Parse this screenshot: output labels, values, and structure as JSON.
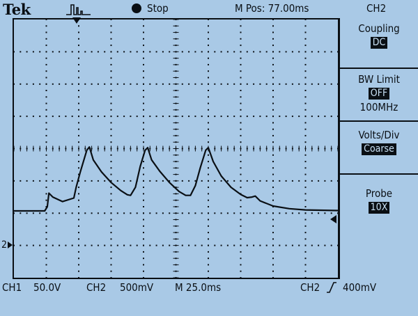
{
  "brand": "Tek",
  "icons": {
    "trigger": "trigger-pulse-icon",
    "run_state": "stop-dot-icon",
    "trigger_position": "trigger-position-marker-icon",
    "trigger_level": "trigger-level-marker-icon",
    "channel_ground": "channel-ground-marker-icon",
    "slope": "rising-slope-icon"
  },
  "status": {
    "run_state": "Stop",
    "m_pos": "M Pos: 77.00ms",
    "active_channel": "CH2"
  },
  "menu": [
    {
      "title": "Coupling",
      "value": "DC",
      "extra": ""
    },
    {
      "title": "BW Limit",
      "value": "OFF",
      "extra": "100MHz"
    },
    {
      "title": "Volts/Div",
      "value": "Coarse",
      "extra": ""
    },
    {
      "title": "Probe",
      "value": "10X",
      "extra": ""
    }
  ],
  "bottom": {
    "ch1": "CH1",
    "ch1_scale": "50.0V",
    "ch2": "CH2",
    "ch2_scale": "500mV",
    "timebase": "M 25.0ms",
    "trig_source": "CH2",
    "trig_level": "400mV"
  },
  "ground_marker_label": "2",
  "colors": {
    "background": "#a9c9e6",
    "foreground": "#0a0f14",
    "highlight_text": "#c8e0f4"
  },
  "chart_data": {
    "type": "line",
    "title": "",
    "xlabel": "",
    "ylabel": "",
    "grid": true,
    "divisions": {
      "x": 10,
      "y": 8
    },
    "xlim": [
      0,
      10
    ],
    "ylim": [
      -4,
      4
    ],
    "series": [
      {
        "points": [
          [
            0.0,
            -1.93
          ],
          [
            0.95,
            -1.93
          ],
          [
            1.03,
            -1.8
          ],
          [
            1.08,
            -1.38
          ],
          [
            1.2,
            -1.5
          ],
          [
            1.5,
            -1.64
          ],
          [
            1.85,
            -1.53
          ],
          [
            1.92,
            -1.2
          ],
          [
            2.05,
            -0.72
          ],
          [
            2.25,
            -0.05
          ],
          [
            2.33,
            0.05
          ],
          [
            2.45,
            -0.35
          ],
          [
            2.7,
            -0.72
          ],
          [
            3.0,
            -1.05
          ],
          [
            3.3,
            -1.3
          ],
          [
            3.5,
            -1.43
          ],
          [
            3.6,
            -1.45
          ],
          [
            3.75,
            -1.2
          ],
          [
            3.9,
            -0.55
          ],
          [
            4.05,
            -0.05
          ],
          [
            4.13,
            0.03
          ],
          [
            4.25,
            -0.35
          ],
          [
            4.5,
            -0.7
          ],
          [
            4.8,
            -1.05
          ],
          [
            5.1,
            -1.33
          ],
          [
            5.3,
            -1.45
          ],
          [
            5.45,
            -1.45
          ],
          [
            5.6,
            -1.15
          ],
          [
            5.75,
            -0.6
          ],
          [
            5.92,
            -0.05
          ],
          [
            6.0,
            0.03
          ],
          [
            6.15,
            -0.4
          ],
          [
            6.4,
            -0.85
          ],
          [
            6.7,
            -1.2
          ],
          [
            7.0,
            -1.42
          ],
          [
            7.2,
            -1.52
          ],
          [
            7.35,
            -1.5
          ],
          [
            7.45,
            -1.47
          ],
          [
            7.6,
            -1.62
          ],
          [
            8.0,
            -1.78
          ],
          [
            8.5,
            -1.86
          ],
          [
            9.0,
            -1.9
          ],
          [
            10.0,
            -1.92
          ]
        ]
      }
    ]
  }
}
